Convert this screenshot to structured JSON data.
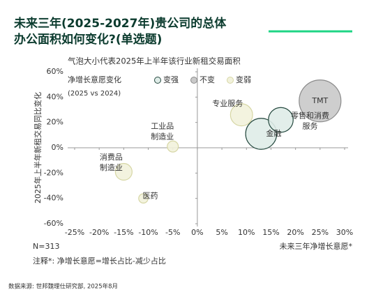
{
  "title_lines": [
    "未来三年(2025-2027年)贵公司的总体",
    "办公面积如何变化?(单选题)"
  ],
  "chart_data": {
    "type": "scatter",
    "subtitle": "气泡大小代表2025年上半年该行业新租交易面积",
    "legend_title": "净增长意愿变化",
    "legend_subtitle": "(2025 vs 2024)",
    "x_label": "未来三年净增长意愿*",
    "y_label": "2025年上半年新租交易同比变化",
    "xlim": [
      -25,
      30
    ],
    "ylim": [
      -60,
      60
    ],
    "xticks": [
      {
        "value": -25,
        "label": "-25%"
      },
      {
        "value": -20,
        "label": "-20%"
      },
      {
        "value": -15,
        "label": "-15%"
      },
      {
        "value": -10,
        "label": "-10%"
      },
      {
        "value": -5,
        "label": "-5%"
      },
      {
        "value": 0,
        "label": "0%"
      },
      {
        "value": 5,
        "label": "5%"
      },
      {
        "value": 10,
        "label": "10%"
      },
      {
        "value": 15,
        "label": "15%"
      },
      {
        "value": 20,
        "label": "20%"
      },
      {
        "value": 25,
        "label": "25%"
      },
      {
        "value": 30,
        "label": "30%"
      }
    ],
    "yticks": [
      {
        "value": -60,
        "label": "-60%"
      },
      {
        "value": -40,
        "label": "-40%"
      },
      {
        "value": -20,
        "label": "-20%"
      },
      {
        "value": 0,
        "label": "0%"
      },
      {
        "value": 20,
        "label": "20%"
      },
      {
        "value": 40,
        "label": "40%"
      },
      {
        "value": 60,
        "label": "60%"
      }
    ],
    "series": [
      {
        "name": "变强",
        "color": "#dfece8",
        "stroke": "#24483e",
        "x": [
          13,
          17
        ],
        "values": [
          11,
          22
        ],
        "size": [
          55,
          35
        ],
        "labels": [
          [
            "金融"
          ],
          [
            "零售和消费",
            "服务"
          ]
        ]
      },
      {
        "name": "不变",
        "color": "#c9c9c9",
        "stroke": "#8a8a8a",
        "x": [
          25
        ],
        "values": [
          37
        ],
        "size": [
          100
        ],
        "labels": [
          [
            "TMT"
          ]
        ]
      },
      {
        "name": "变弱",
        "color": "#f2f2dc",
        "stroke": "#d6d6a4",
        "x": [
          9,
          -5,
          -15,
          -11
        ],
        "values": [
          26,
          1,
          -19,
          -40
        ],
        "size": [
          28,
          7,
          16,
          5
        ],
        "labels": [
          [
            "专业服务"
          ],
          [
            "工业品",
            "制造业"
          ],
          [
            "消费品",
            "制造业"
          ],
          [
            "医药"
          ]
        ]
      }
    ]
  },
  "notes": {
    "n": "N=313",
    "footnote": "注释*: 净增长意愿=增长占比-减少占比",
    "source": "数据来源: 世邦魏理仕研究部, 2025年8月"
  }
}
